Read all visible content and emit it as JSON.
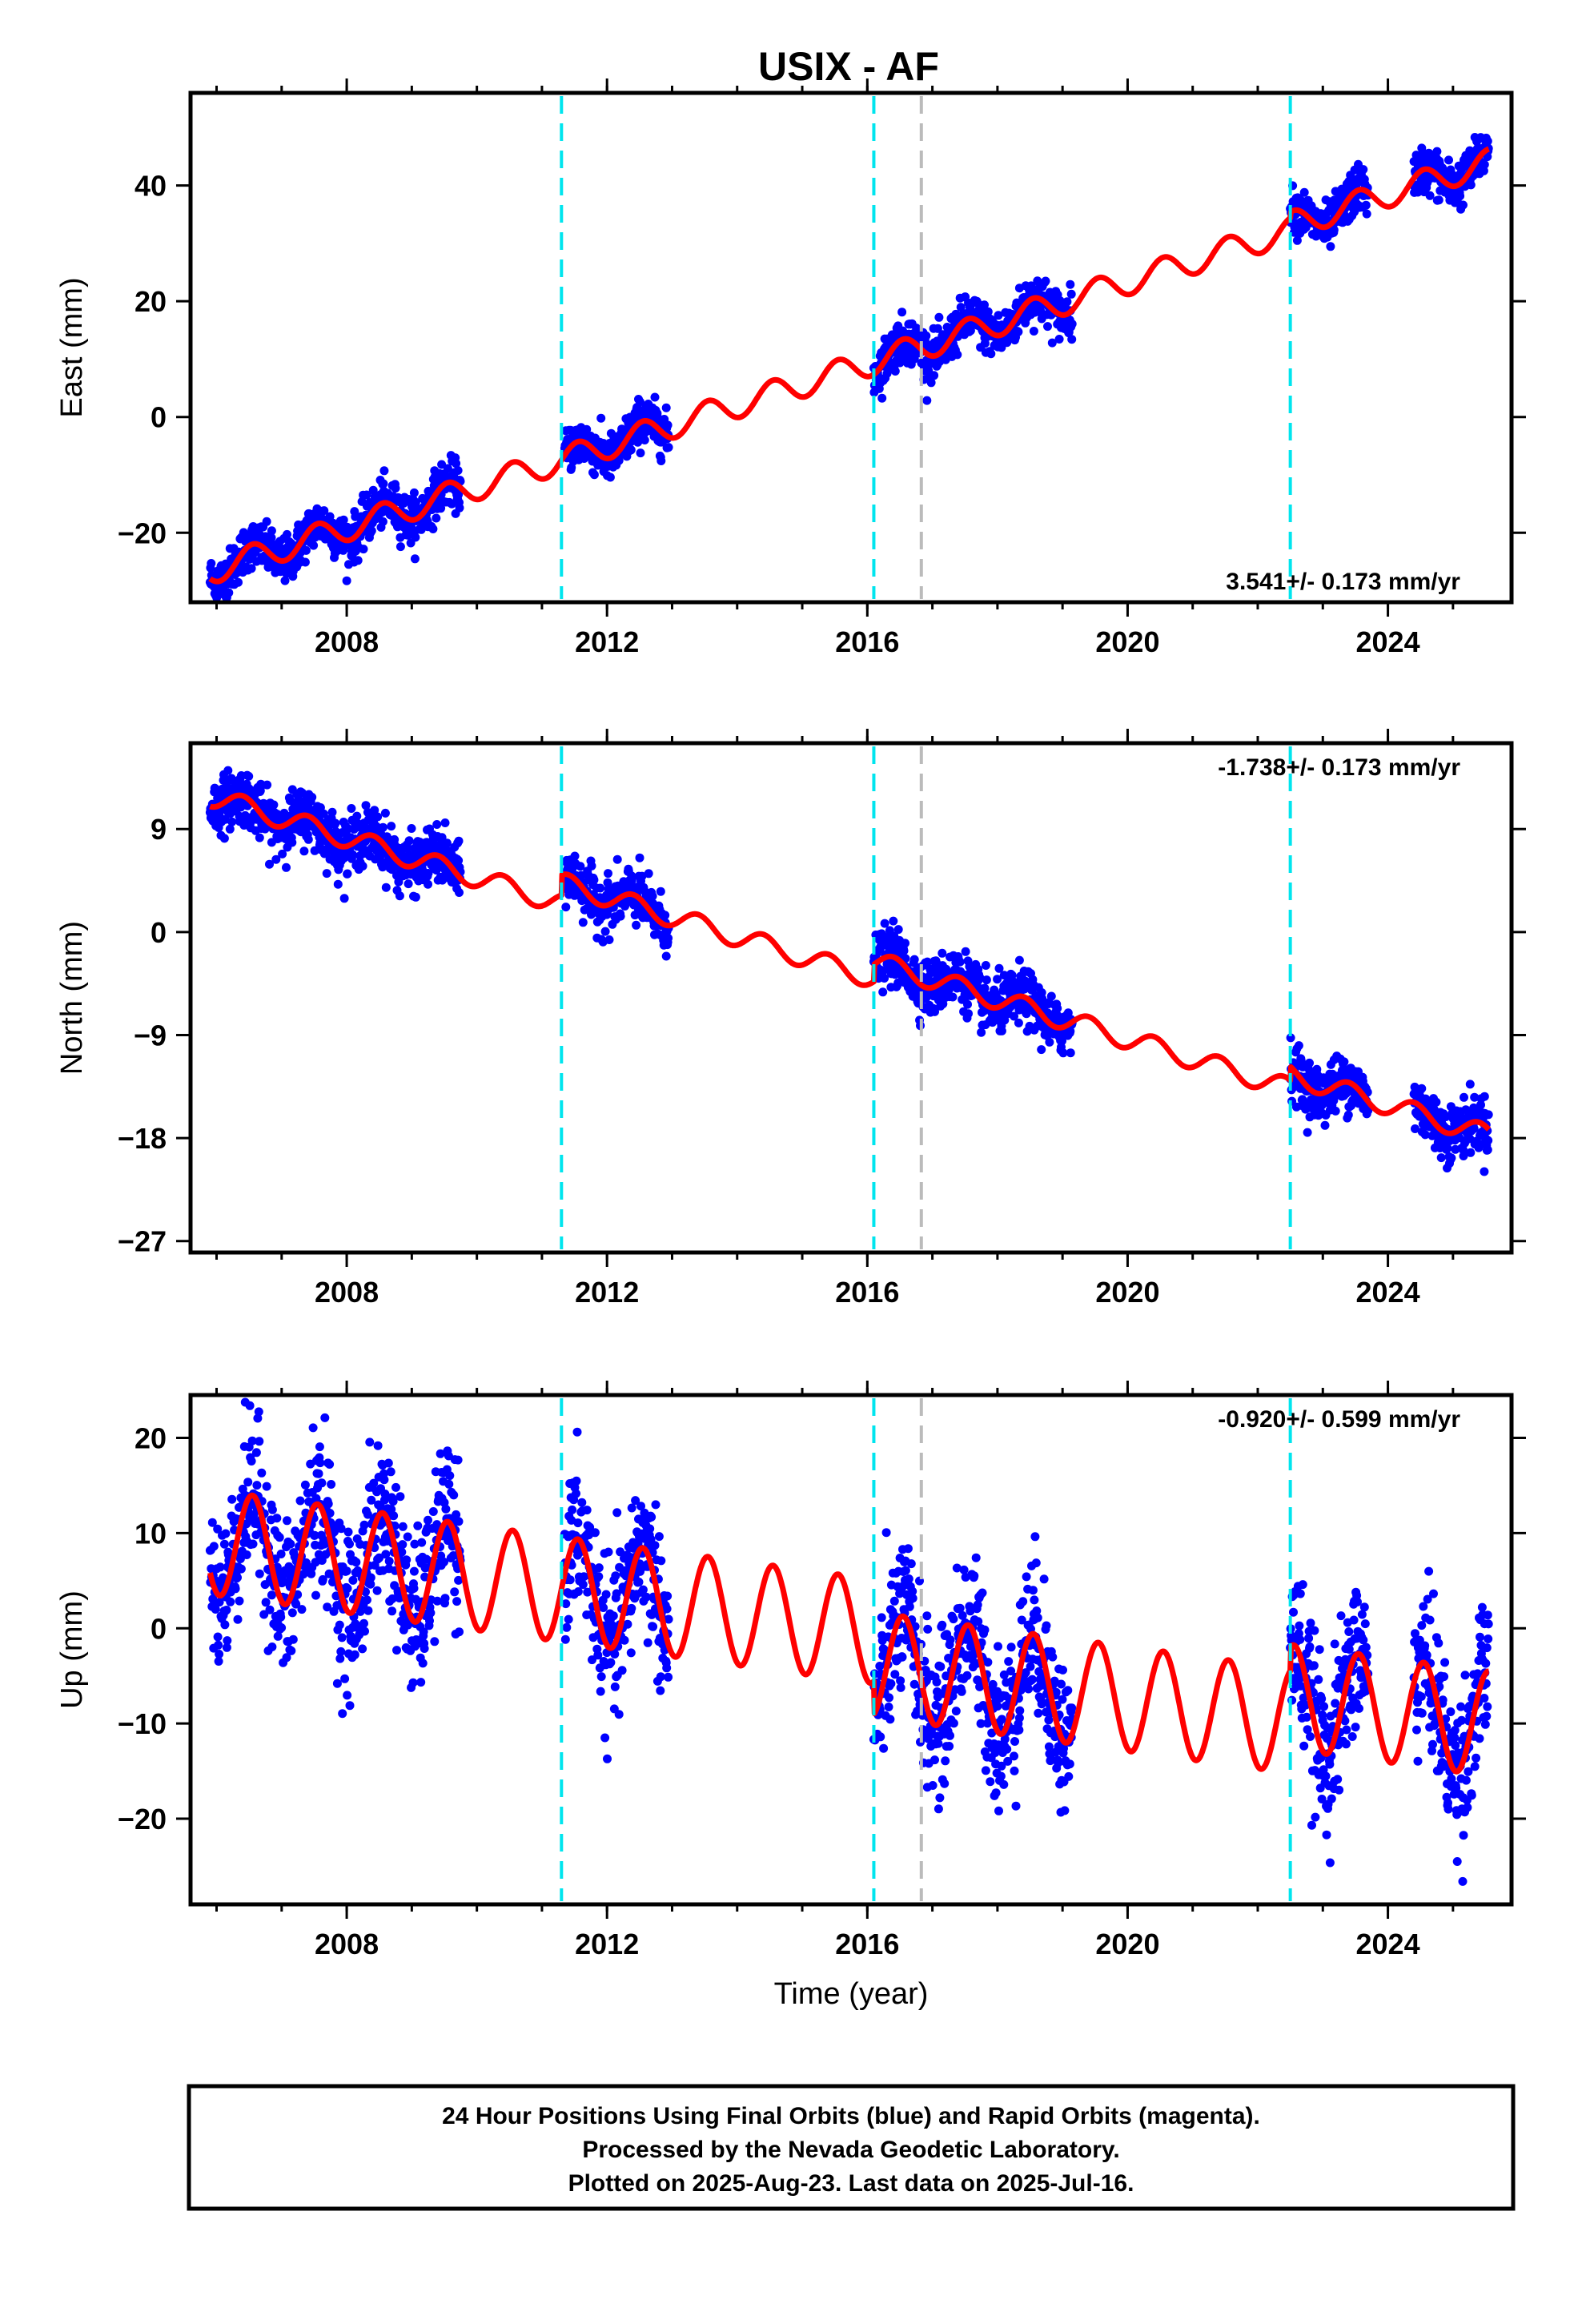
{
  "title": "USIX - AF",
  "colors": {
    "final_orbits": "#0000ff",
    "model_fit": "#ff0000",
    "antenna_change": "#00e5ee",
    "other_event": "#bbbbbb"
  },
  "chart_data": [
    {
      "type": "scatter",
      "component": "East",
      "ylabel": "East (mm)",
      "xlim": [
        2005.6,
        2025.9
      ],
      "ylim": [
        -32,
        56
      ],
      "yticks": [
        -20,
        0,
        20,
        40
      ],
      "xticks": [
        2008,
        2012,
        2016,
        2020,
        2024
      ],
      "rate_label": "3.541+/- 0.173 mm/yr",
      "rate_position": "bottom-right",
      "trend": {
        "rate": 3.541,
        "t0": 2015.75,
        "intercept": 8.3,
        "annual_amplitude": 2.3,
        "annual_peak": 0.55
      },
      "offsets": [
        {
          "t": 2022.5,
          "value": 1.0
        }
      ],
      "data_segments": [
        [
          2005.9,
          2009.75
        ],
        [
          2011.35,
          2012.95
        ],
        [
          2016.1,
          2019.15
        ],
        [
          2022.5,
          2023.7
        ],
        [
          2024.4,
          2025.55
        ]
      ],
      "scatter": 2.0
    },
    {
      "type": "scatter",
      "component": "North",
      "ylabel": "North (mm)",
      "xlim": [
        2005.6,
        2025.9
      ],
      "ylim": [
        -28,
        16.5
      ],
      "yticks": [
        -27,
        -18,
        -9,
        0,
        9
      ],
      "xticks": [
        2008,
        2012,
        2016,
        2020,
        2024
      ],
      "rate_label": "-1.738+/- 0.173 mm/yr",
      "rate_position": "top-right",
      "trend": {
        "rate": -1.738,
        "t0": 2015.75,
        "intercept": -5.25,
        "annual_amplitude": 0.9,
        "annual_peak": 0.4
      },
      "offsets": [
        {
          "t": 2011.3,
          "value": 1.8
        },
        {
          "t": 2016.1,
          "value": 1.5
        },
        {
          "t": 2022.5,
          "value": 1.2
        }
      ],
      "data_segments": [
        [
          2005.9,
          2009.75
        ],
        [
          2011.35,
          2012.95
        ],
        [
          2016.1,
          2019.15
        ],
        [
          2022.5,
          2023.7
        ],
        [
          2024.4,
          2025.55
        ]
      ],
      "scatter": 1.2
    },
    {
      "type": "scatter",
      "component": "Up",
      "ylabel": "Up (mm)",
      "xlabel": "Time (year)",
      "xlim": [
        2005.6,
        2025.9
      ],
      "ylim": [
        -29,
        24.5
      ],
      "yticks": [
        -20,
        -10,
        0,
        10,
        20
      ],
      "xticks": [
        2008,
        2012,
        2016,
        2020,
        2024
      ],
      "rate_label": "-0.920+/- 0.599 mm/yr",
      "rate_position": "top-right",
      "trend": {
        "rate": -0.92,
        "t0": 2015.75,
        "intercept": 0.0,
        "annual_amplitude": 5.5,
        "annual_peak": 0.55
      },
      "offsets": [
        {
          "t": 2016.1,
          "value": -3.5
        },
        {
          "t": 2022.5,
          "value": 2.5
        }
      ],
      "data_segments": [
        [
          2005.9,
          2009.75
        ],
        [
          2011.35,
          2012.95
        ],
        [
          2016.1,
          2019.15
        ],
        [
          2022.5,
          2023.7
        ],
        [
          2024.4,
          2025.55
        ]
      ],
      "scatter": 4.0
    }
  ],
  "events": [
    {
      "t": 2011.3,
      "kind": "antenna_change"
    },
    {
      "t": 2016.1,
      "kind": "antenna_change"
    },
    {
      "t": 2016.83,
      "kind": "other_event"
    },
    {
      "t": 2022.5,
      "kind": "antenna_change"
    }
  ],
  "footer": {
    "line1": "24 Hour Positions Using Final Orbits (blue) and Rapid Orbits (magenta).",
    "line2": "Processed by the Nevada Geodetic Laboratory.",
    "line3": "Plotted on 2025-Aug-23. Last data on 2025-Jul-16."
  }
}
